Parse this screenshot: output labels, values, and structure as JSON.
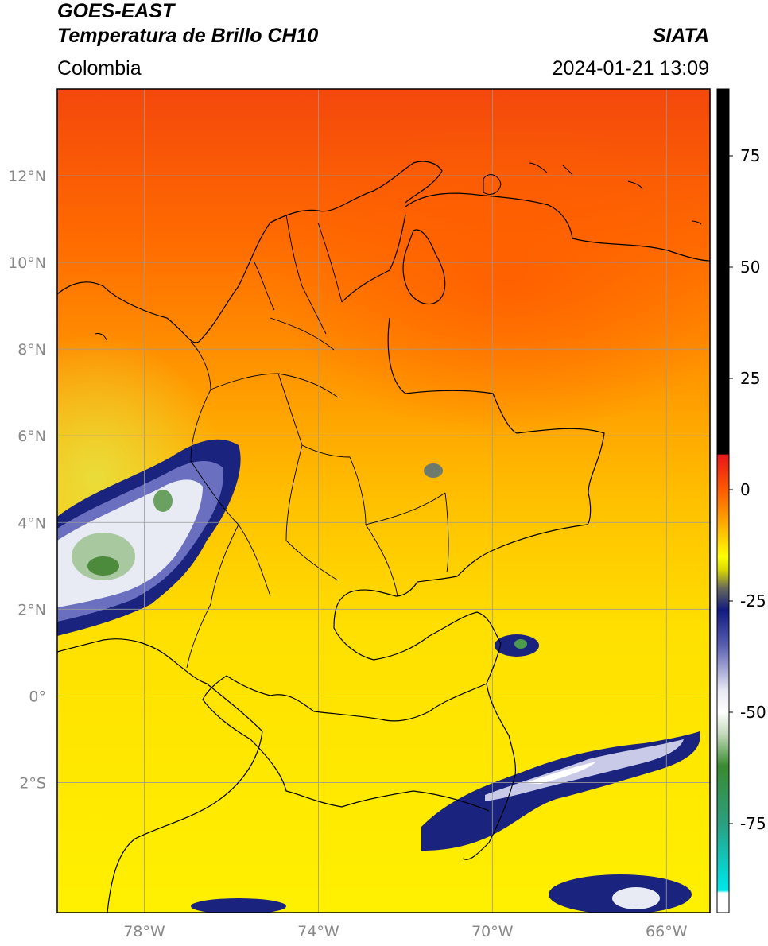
{
  "header": {
    "satellite": "GOES-EAST",
    "product": "Temperatura de Brillo CH10",
    "organization": "SIATA",
    "region": "Colombia",
    "datetime": "2024-01-21 13:09"
  },
  "map": {
    "lon_range": [
      -80,
      -65
    ],
    "lat_range": [
      -5,
      14
    ],
    "lat_ticks": [
      {
        "value": 12,
        "label": "12°N"
      },
      {
        "value": 10,
        "label": "10°N"
      },
      {
        "value": 8,
        "label": "8°N"
      },
      {
        "value": 6,
        "label": "6°N"
      },
      {
        "value": 4,
        "label": "4°N"
      },
      {
        "value": 2,
        "label": "2°N"
      },
      {
        "value": 0,
        "label": "0°"
      },
      {
        "value": -2,
        "label": "2°S"
      }
    ],
    "lon_ticks": [
      {
        "value": -78,
        "label": "78°W"
      },
      {
        "value": -74,
        "label": "74°W"
      },
      {
        "value": -70,
        "label": "70°W"
      },
      {
        "value": -66,
        "label": "66°W"
      }
    ],
    "colors": {
      "warm_north": "#ff6a00",
      "mid": "#ffb300",
      "south": "#ffe100",
      "cloud_navy": "#1a237e",
      "cloud_white": "#e8eaf6",
      "cloud_green": "#4c9a4c",
      "border": "#000000",
      "grid": "#a0a0a0"
    }
  },
  "colorbar": {
    "range": [
      -95,
      90
    ],
    "ticks": [
      {
        "value": 75,
        "label": "75"
      },
      {
        "value": 50,
        "label": "50"
      },
      {
        "value": 25,
        "label": "25"
      },
      {
        "value": 0,
        "label": "0"
      },
      {
        "value": -25,
        "label": "-25"
      },
      {
        "value": -50,
        "label": "-50"
      },
      {
        "value": -75,
        "label": "-75"
      }
    ],
    "stops": [
      {
        "value": 90,
        "color": "#000000"
      },
      {
        "value": 8,
        "color": "#000000"
      },
      {
        "value": 7.9,
        "color": "#e8151a"
      },
      {
        "value": 0,
        "color": "#ff5a00"
      },
      {
        "value": -8,
        "color": "#ffb000"
      },
      {
        "value": -15,
        "color": "#ffff00"
      },
      {
        "value": -18,
        "color": "#d8d800"
      },
      {
        "value": -22,
        "color": "#6a6a5a"
      },
      {
        "value": -27,
        "color": "#101a80"
      },
      {
        "value": -35,
        "color": "#5a5fb0"
      },
      {
        "value": -45,
        "color": "#e8e8f4"
      },
      {
        "value": -50,
        "color": "#ffffff"
      },
      {
        "value": -55,
        "color": "#c0d8b8"
      },
      {
        "value": -62,
        "color": "#3a8a30"
      },
      {
        "value": -75,
        "color": "#2aa080"
      },
      {
        "value": -88,
        "color": "#00e0e0"
      },
      {
        "value": -90,
        "color": "#00e8e8"
      },
      {
        "value": -90.5,
        "color": "#ffffff"
      },
      {
        "value": -95,
        "color": "#ffffff"
      }
    ]
  }
}
